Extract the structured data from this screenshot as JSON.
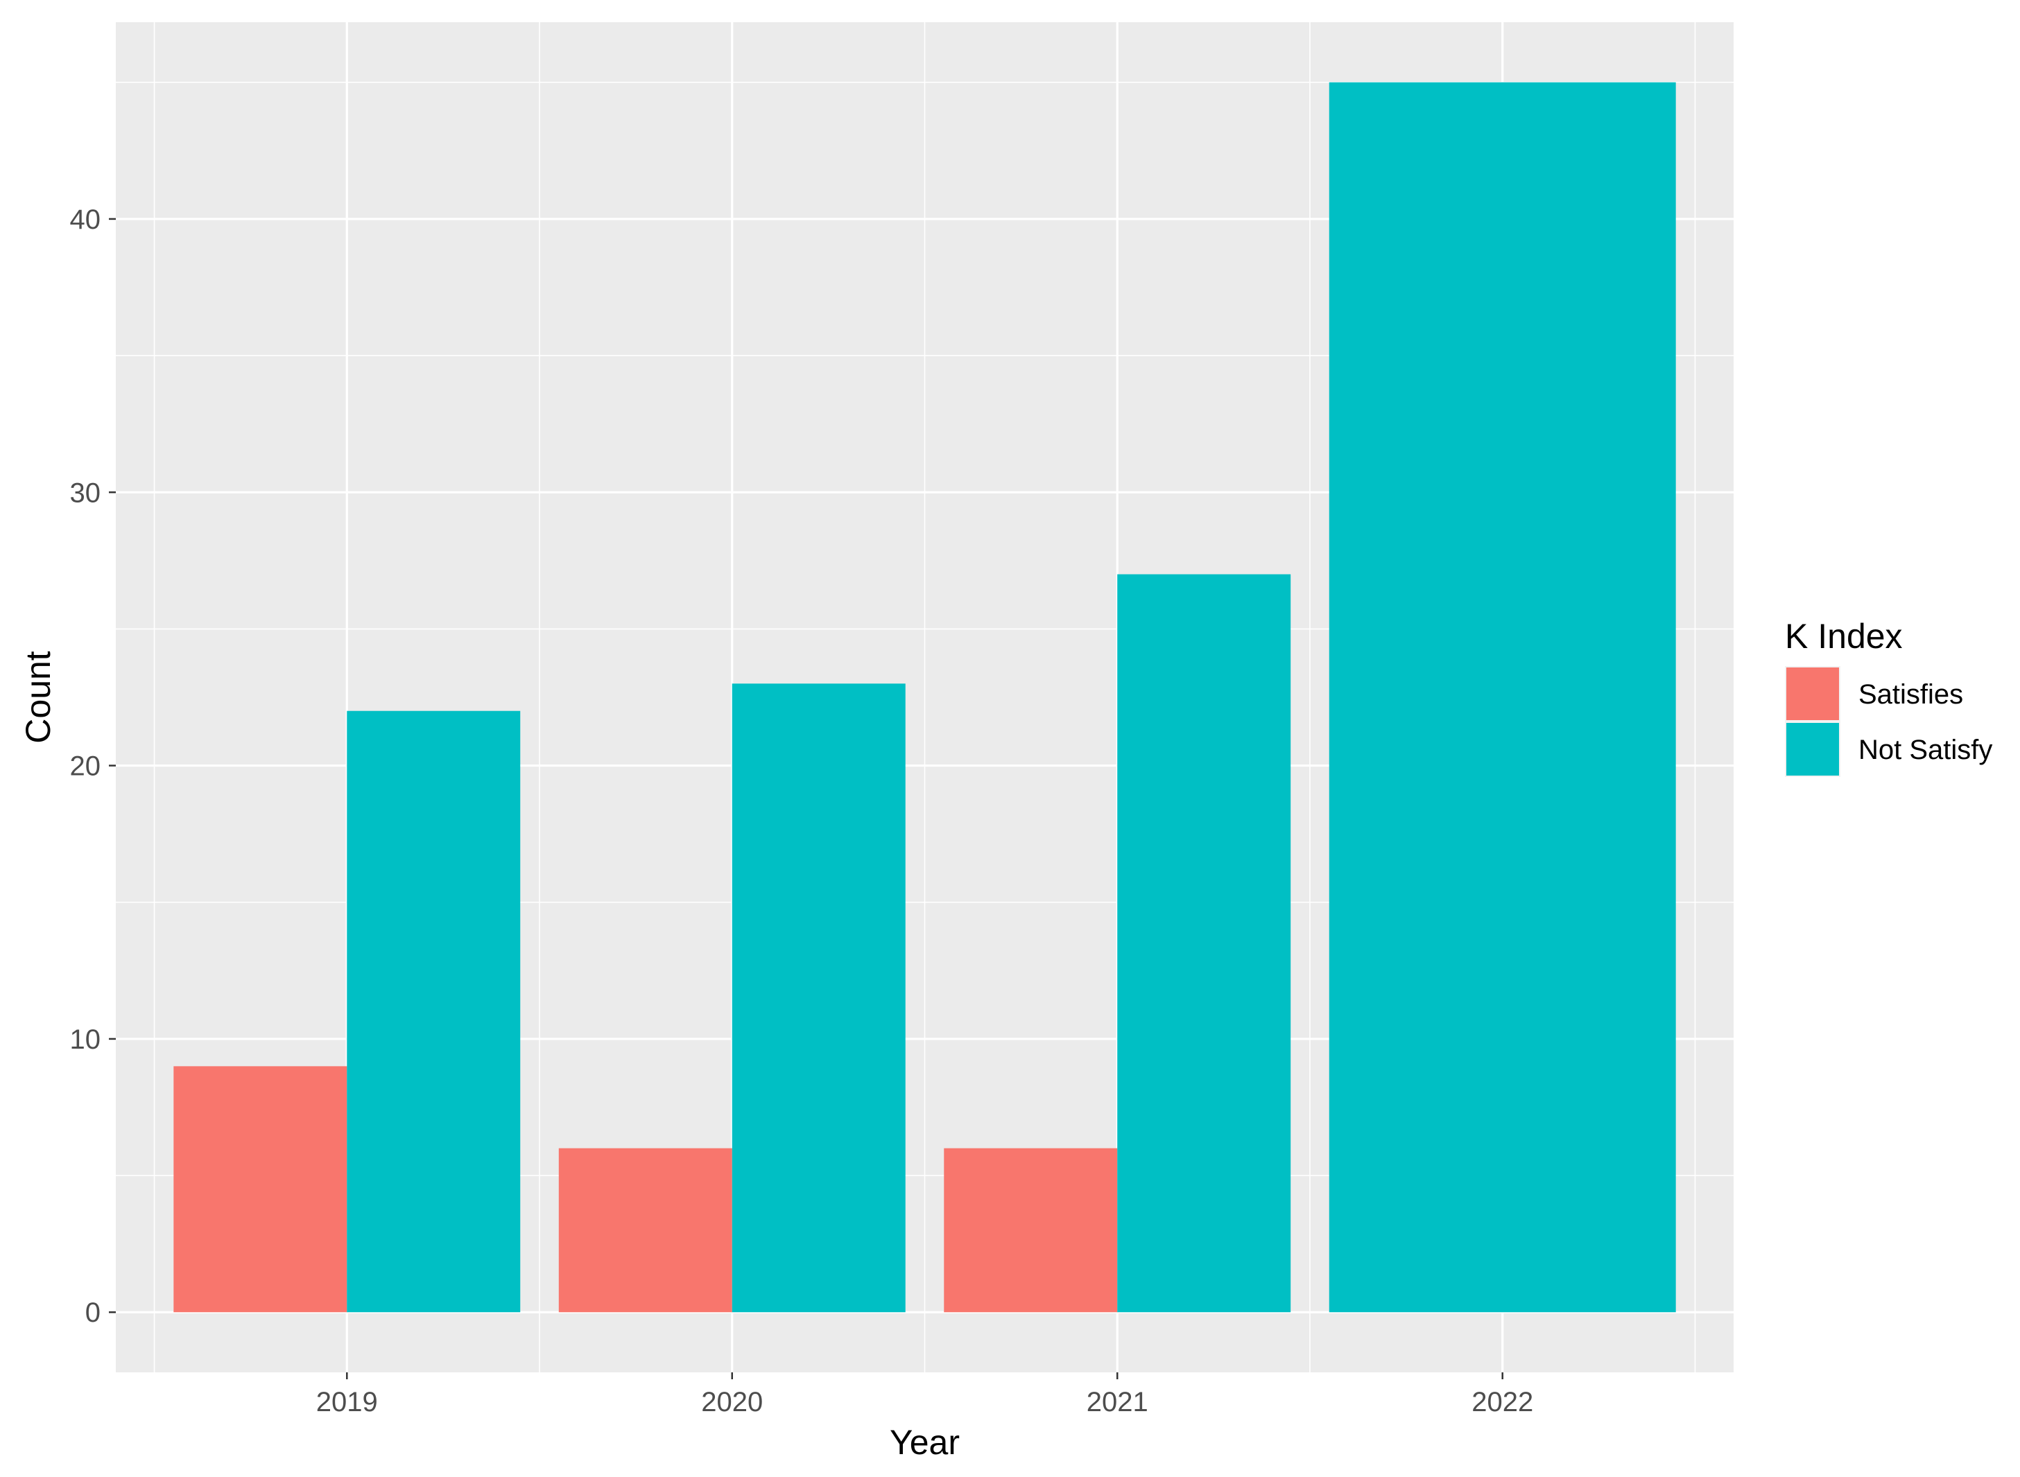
{
  "chart_data": {
    "type": "bar",
    "title": "",
    "xlabel": "Year",
    "ylabel": "Count",
    "categories": [
      "2019",
      "2020",
      "2021",
      "2022"
    ],
    "series": [
      {
        "name": "Satisfies",
        "color": "#F8766D",
        "values": [
          9,
          6,
          6,
          0
        ]
      },
      {
        "name": "Not Satisfy",
        "color": "#00BFC4",
        "values": [
          22,
          23,
          27,
          45
        ]
      }
    ],
    "ylim": [
      -2.2,
      47.2
    ],
    "yticks": [
      0,
      10,
      20,
      30,
      40
    ],
    "grid": true,
    "legend": {
      "title": "K Index",
      "position": "right"
    },
    "panel_color": "#EBEBEB"
  }
}
